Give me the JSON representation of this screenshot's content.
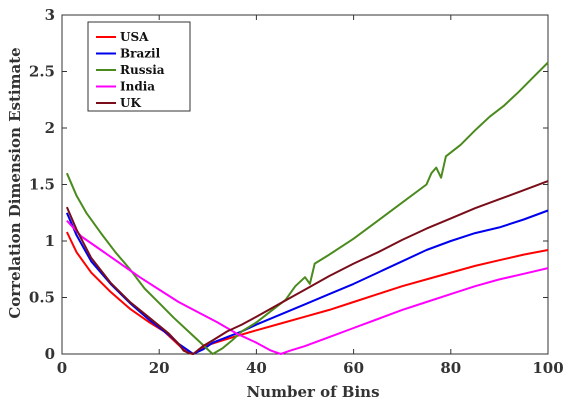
{
  "chart_data": {
    "type": "line",
    "title": "",
    "xlabel": "Number of Bins",
    "ylabel": "Correlation Dimension Estimate",
    "xlim": [
      0,
      100
    ],
    "ylim": [
      0,
      3
    ],
    "xticks": [
      0,
      20,
      40,
      60,
      80,
      100
    ],
    "yticks": [
      0,
      0.5,
      1,
      1.5,
      2,
      2.5,
      3
    ],
    "xtick_labels": [
      "0",
      "20",
      "40",
      "60",
      "80",
      "100"
    ],
    "ytick_labels": [
      "0",
      "0.5",
      "1",
      "1.5",
      "2",
      "2.5",
      "3"
    ],
    "grid": false,
    "legend_position": "top-left",
    "series": [
      {
        "name": "USA",
        "color": "#ff0000",
        "points": [
          [
            1,
            1.08
          ],
          [
            3,
            0.9
          ],
          [
            6,
            0.72
          ],
          [
            10,
            0.55
          ],
          [
            14,
            0.4
          ],
          [
            18,
            0.28
          ],
          [
            21,
            0.2
          ],
          [
            23,
            0.12
          ],
          [
            25,
            0.04
          ],
          [
            26,
            0.01
          ],
          [
            27,
            0.0
          ],
          [
            28,
            0.03
          ],
          [
            30,
            0.08
          ],
          [
            33,
            0.12
          ],
          [
            36,
            0.16
          ],
          [
            40,
            0.21
          ],
          [
            45,
            0.27
          ],
          [
            50,
            0.33
          ],
          [
            55,
            0.39
          ],
          [
            60,
            0.46
          ],
          [
            65,
            0.53
          ],
          [
            70,
            0.6
          ],
          [
            75,
            0.66
          ],
          [
            80,
            0.72
          ],
          [
            85,
            0.78
          ],
          [
            90,
            0.83
          ],
          [
            95,
            0.88
          ],
          [
            100,
            0.92
          ]
        ]
      },
      {
        "name": "Brazil",
        "color": "#0000ee",
        "points": [
          [
            1,
            1.25
          ],
          [
            3,
            1.05
          ],
          [
            6,
            0.82
          ],
          [
            10,
            0.62
          ],
          [
            14,
            0.45
          ],
          [
            18,
            0.3
          ],
          [
            22,
            0.17
          ],
          [
            24,
            0.09
          ],
          [
            26,
            0.03
          ],
          [
            27,
            0.0
          ],
          [
            29,
            0.04
          ],
          [
            31,
            0.1
          ],
          [
            34,
            0.15
          ],
          [
            37,
            0.2
          ],
          [
            40,
            0.26
          ],
          [
            45,
            0.35
          ],
          [
            50,
            0.44
          ],
          [
            55,
            0.53
          ],
          [
            60,
            0.62
          ],
          [
            65,
            0.72
          ],
          [
            70,
            0.82
          ],
          [
            75,
            0.92
          ],
          [
            80,
            1.0
          ],
          [
            85,
            1.07
          ],
          [
            90,
            1.12
          ],
          [
            95,
            1.19
          ],
          [
            100,
            1.27
          ]
        ]
      },
      {
        "name": "Russia",
        "color": "#4b8b1e",
        "points": [
          [
            1,
            1.6
          ],
          [
            3,
            1.4
          ],
          [
            5,
            1.25
          ],
          [
            8,
            1.07
          ],
          [
            11,
            0.9
          ],
          [
            14,
            0.75
          ],
          [
            17,
            0.58
          ],
          [
            20,
            0.45
          ],
          [
            23,
            0.32
          ],
          [
            26,
            0.2
          ],
          [
            28,
            0.12
          ],
          [
            30,
            0.04
          ],
          [
            31,
            0.0
          ],
          [
            33,
            0.05
          ],
          [
            35,
            0.12
          ],
          [
            37,
            0.2
          ],
          [
            40,
            0.28
          ],
          [
            43,
            0.38
          ],
          [
            46,
            0.48
          ],
          [
            48,
            0.6
          ],
          [
            50,
            0.68
          ],
          [
            51,
            0.62
          ],
          [
            52,
            0.8
          ],
          [
            55,
            0.88
          ],
          [
            60,
            1.02
          ],
          [
            65,
            1.18
          ],
          [
            70,
            1.34
          ],
          [
            75,
            1.5
          ],
          [
            76,
            1.6
          ],
          [
            77,
            1.65
          ],
          [
            78,
            1.56
          ],
          [
            79,
            1.75
          ],
          [
            82,
            1.85
          ],
          [
            85,
            1.98
          ],
          [
            88,
            2.1
          ],
          [
            91,
            2.2
          ],
          [
            94,
            2.32
          ],
          [
            97,
            2.45
          ],
          [
            100,
            2.58
          ]
        ]
      },
      {
        "name": "India",
        "color": "#ff00ff",
        "points": [
          [
            1,
            1.18
          ],
          [
            4,
            1.04
          ],
          [
            8,
            0.92
          ],
          [
            12,
            0.8
          ],
          [
            16,
            0.68
          ],
          [
            20,
            0.57
          ],
          [
            24,
            0.46
          ],
          [
            28,
            0.37
          ],
          [
            32,
            0.28
          ],
          [
            36,
            0.18
          ],
          [
            40,
            0.1
          ],
          [
            43,
            0.03
          ],
          [
            45,
            0.0
          ],
          [
            47,
            0.03
          ],
          [
            50,
            0.07
          ],
          [
            55,
            0.15
          ],
          [
            60,
            0.23
          ],
          [
            65,
            0.31
          ],
          [
            70,
            0.39
          ],
          [
            75,
            0.46
          ],
          [
            80,
            0.53
          ],
          [
            85,
            0.6
          ],
          [
            90,
            0.66
          ],
          [
            95,
            0.71
          ],
          [
            100,
            0.76
          ]
        ]
      },
      {
        "name": "UK",
        "color": "#7a0d1a",
        "points": [
          [
            1,
            1.3
          ],
          [
            3,
            1.1
          ],
          [
            6,
            0.85
          ],
          [
            10,
            0.63
          ],
          [
            14,
            0.46
          ],
          [
            18,
            0.32
          ],
          [
            22,
            0.18
          ],
          [
            24,
            0.09
          ],
          [
            25,
            0.03
          ],
          [
            26,
            0.01
          ],
          [
            27,
            0.0
          ],
          [
            29,
            0.07
          ],
          [
            31,
            0.12
          ],
          [
            34,
            0.2
          ],
          [
            37,
            0.26
          ],
          [
            40,
            0.33
          ],
          [
            45,
            0.45
          ],
          [
            50,
            0.57
          ],
          [
            55,
            0.69
          ],
          [
            60,
            0.8
          ],
          [
            65,
            0.9
          ],
          [
            70,
            1.01
          ],
          [
            75,
            1.11
          ],
          [
            80,
            1.2
          ],
          [
            85,
            1.29
          ],
          [
            90,
            1.37
          ],
          [
            95,
            1.45
          ],
          [
            100,
            1.53
          ]
        ]
      }
    ]
  }
}
